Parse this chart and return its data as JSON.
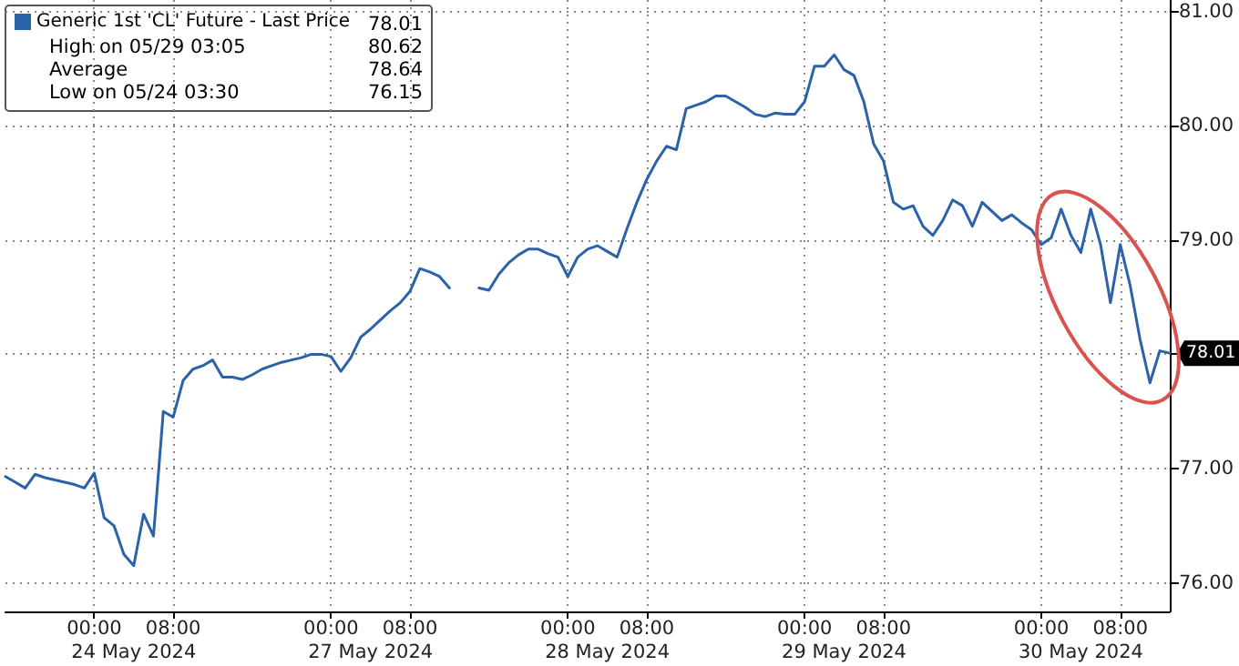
{
  "chart_data": {
    "type": "line",
    "categories": [
      null,
      null,
      null,
      null,
      null,
      null,
      null,
      null,
      null,
      "00:00",
      null,
      null,
      null,
      null,
      null,
      null,
      null,
      "08:00",
      null,
      null,
      null,
      null,
      null,
      null,
      null,
      null,
      null,
      null,
      null,
      null,
      null,
      null,
      null,
      "00:00",
      null,
      null,
      null,
      null,
      null,
      null,
      null,
      "08:00",
      null,
      null,
      null,
      null,
      null,
      null,
      null,
      null,
      null,
      null,
      null,
      null,
      null,
      null,
      null,
      "00:00",
      null,
      null,
      null,
      null,
      null,
      null,
      null,
      "08:00",
      null,
      null,
      null,
      null,
      null,
      null,
      null,
      null,
      null,
      null,
      null,
      null,
      null,
      null,
      null,
      "00:00",
      null,
      null,
      null,
      null,
      null,
      null,
      null,
      "08:00",
      null,
      null,
      null,
      null,
      null,
      null,
      null,
      null,
      null,
      null,
      null,
      null,
      null,
      null,
      null,
      "00:00",
      null,
      null,
      null,
      null,
      null,
      null,
      null,
      "08:00",
      null,
      null,
      null,
      null,
      null
    ],
    "series": [
      {
        "name": "Generic 1st 'CL' Future - Last Price",
        "color": "#2b62a8",
        "values": [
          76.93,
          76.88,
          76.83,
          76.95,
          76.92,
          76.9,
          76.88,
          76.86,
          76.83,
          76.96,
          76.57,
          76.5,
          76.25,
          76.15,
          76.6,
          76.41,
          77.5,
          77.45,
          77.77,
          77.87,
          77.9,
          77.95,
          77.8,
          77.8,
          77.78,
          77.82,
          77.87,
          77.9,
          77.93,
          77.95,
          77.97,
          78.0,
          78.0,
          77.98,
          77.85,
          77.97,
          78.15,
          78.22,
          78.3,
          78.38,
          78.45,
          78.55,
          78.75,
          78.72,
          78.68,
          78.58,
          null,
          null,
          78.58,
          78.56,
          78.7,
          78.8,
          78.87,
          78.92,
          78.92,
          78.88,
          78.85,
          78.68,
          78.85,
          78.92,
          78.95,
          78.9,
          78.85,
          79.1,
          79.33,
          79.53,
          79.69,
          79.82,
          79.79,
          80.15,
          80.18,
          80.21,
          80.26,
          80.26,
          80.21,
          80.16,
          80.1,
          80.08,
          80.11,
          80.1,
          80.1,
          80.21,
          80.52,
          80.52,
          80.62,
          80.49,
          80.44,
          80.21,
          79.84,
          79.69,
          79.33,
          79.27,
          79.3,
          79.12,
          79.04,
          79.17,
          79.35,
          79.3,
          79.12,
          79.33,
          79.25,
          79.17,
          79.22,
          79.15,
          79.09,
          78.96,
          79.02,
          79.27,
          79.04,
          78.89,
          79.27,
          78.96,
          78.45,
          78.96,
          78.6,
          78.13,
          77.75,
          78.03,
          78.01
        ]
      }
    ],
    "ylim": [
      75.75,
      81.1
    ],
    "yticks": [
      {
        "value": 76,
        "label": "76.00"
      },
      {
        "value": 77,
        "label": "77.00"
      },
      {
        "value": 78,
        "label": null
      },
      {
        "value": 79,
        "label": "79.00"
      },
      {
        "value": 80,
        "label": "80.00"
      },
      {
        "value": 81,
        "label": "81.00"
      }
    ],
    "grid": true,
    "legend": "top left",
    "marker": "none",
    "line_style": "solid",
    "annotations": [
      "78.01",
      "High on 05/29 03:05",
      "80.62",
      "Average",
      "78.64",
      "Low on 05/24 03:30",
      "76.15",
      "78.01",
      "24 May 2024",
      "27 May 2024",
      "28 May 2024",
      "29 May 2024",
      "30 May 2024"
    ]
  }
}
